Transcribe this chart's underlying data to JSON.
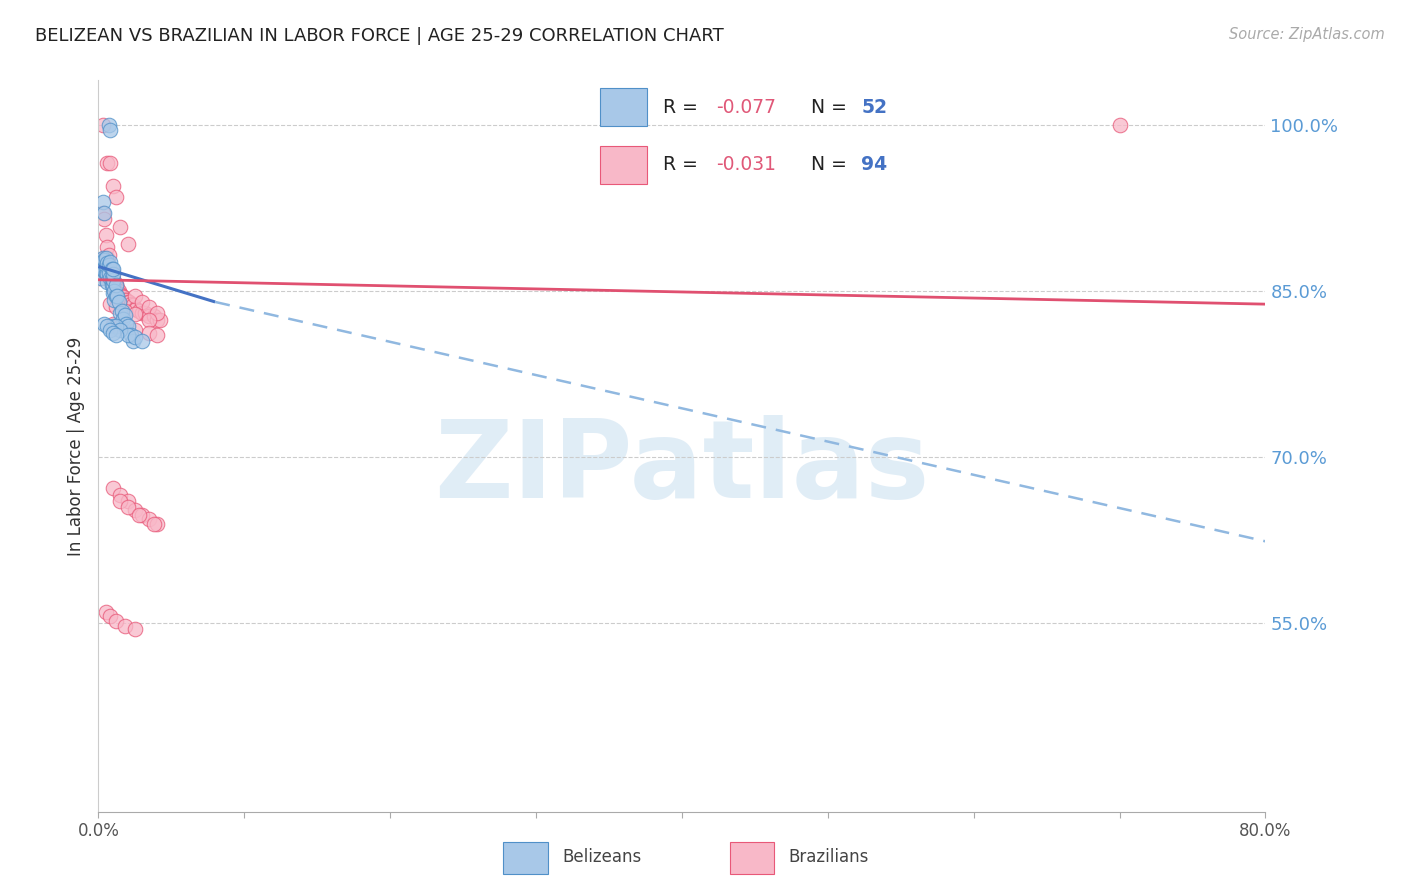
{
  "title": "BELIZEAN VS BRAZILIAN IN LABOR FORCE | AGE 25-29 CORRELATION CHART",
  "source": "Source: ZipAtlas.com",
  "ylabel": "In Labor Force | Age 25-29",
  "xlim": [
    0.0,
    0.8
  ],
  "ylim": [
    0.38,
    1.04
  ],
  "xtick_vals": [
    0.0,
    0.1,
    0.2,
    0.3,
    0.4,
    0.5,
    0.6,
    0.7,
    0.8
  ],
  "xticklabels": [
    "0.0%",
    "",
    "",
    "",
    "",
    "",
    "",
    "",
    "80.0%"
  ],
  "yticks_right": [
    1.0,
    0.85,
    0.7,
    0.55
  ],
  "ytick_right_labels": [
    "100.0%",
    "85.0%",
    "70.0%",
    "55.0%"
  ],
  "blue_scatter_color": "#a8c8e8",
  "blue_edge_color": "#5090c8",
  "pink_scatter_color": "#f8b8c8",
  "pink_edge_color": "#e85878",
  "blue_line_color": "#4472c4",
  "pink_line_color": "#e05070",
  "blue_dashed_color": "#90b8e0",
  "legend_r_blue": "-0.077",
  "legend_n_blue": "52",
  "legend_r_pink": "-0.031",
  "legend_n_pink": "94",
  "watermark": "ZIPatlas",
  "watermark_color": "#c8dff0",
  "blue_line_x0": 0.0,
  "blue_line_y0": 0.872,
  "blue_line_x1": 0.08,
  "blue_line_y1": 0.84,
  "blue_line_xend": 0.8,
  "blue_line_yend": 0.624,
  "pink_line_x0": 0.0,
  "pink_line_y0": 0.86,
  "pink_line_x1": 0.8,
  "pink_line_y1": 0.838,
  "blue_x": [
    0.002,
    0.003,
    0.003,
    0.004,
    0.004,
    0.005,
    0.005,
    0.005,
    0.006,
    0.006,
    0.006,
    0.007,
    0.007,
    0.008,
    0.008,
    0.009,
    0.009,
    0.009,
    0.01,
    0.01,
    0.01,
    0.01,
    0.01,
    0.011,
    0.011,
    0.012,
    0.012,
    0.013,
    0.014,
    0.015,
    0.016,
    0.017,
    0.018,
    0.019,
    0.02,
    0.022,
    0.024,
    0.003,
    0.004,
    0.007,
    0.008,
    0.01,
    0.012,
    0.015,
    0.02,
    0.025,
    0.03,
    0.004,
    0.006,
    0.008,
    0.01,
    0.012
  ],
  "blue_y": [
    0.862,
    0.87,
    0.88,
    0.868,
    0.878,
    0.866,
    0.872,
    0.88,
    0.865,
    0.875,
    0.858,
    0.866,
    0.873,
    0.862,
    0.876,
    0.855,
    0.862,
    0.87,
    0.848,
    0.855,
    0.86,
    0.865,
    0.87,
    0.842,
    0.85,
    0.845,
    0.855,
    0.845,
    0.84,
    0.83,
    0.832,
    0.825,
    0.828,
    0.82,
    0.818,
    0.81,
    0.805,
    0.93,
    0.92,
    1.0,
    0.995,
    0.818,
    0.818,
    0.815,
    0.81,
    0.808,
    0.805,
    0.82,
    0.818,
    0.815,
    0.812,
    0.81
  ],
  "pink_x": [
    0.001,
    0.002,
    0.002,
    0.003,
    0.003,
    0.004,
    0.004,
    0.005,
    0.005,
    0.005,
    0.006,
    0.006,
    0.006,
    0.007,
    0.007,
    0.008,
    0.008,
    0.009,
    0.009,
    0.01,
    0.01,
    0.01,
    0.011,
    0.011,
    0.012,
    0.012,
    0.013,
    0.013,
    0.014,
    0.015,
    0.016,
    0.017,
    0.018,
    0.019,
    0.02,
    0.021,
    0.022,
    0.024,
    0.025,
    0.026,
    0.028,
    0.03,
    0.032,
    0.035,
    0.038,
    0.04,
    0.042,
    0.003,
    0.004,
    0.005,
    0.006,
    0.007,
    0.003,
    0.006,
    0.008,
    0.01,
    0.012,
    0.015,
    0.02,
    0.025,
    0.03,
    0.035,
    0.04,
    0.01,
    0.015,
    0.02,
    0.025,
    0.03,
    0.035,
    0.04,
    0.008,
    0.012,
    0.018,
    0.025,
    0.035,
    0.7,
    0.005,
    0.008,
    0.012,
    0.018,
    0.025,
    0.01,
    0.015,
    0.025,
    0.035,
    0.04,
    0.015,
    0.02,
    0.028,
    0.038
  ],
  "pink_y": [
    0.862,
    0.87,
    0.875,
    0.866,
    0.875,
    0.87,
    0.88,
    0.87,
    0.876,
    0.865,
    0.871,
    0.876,
    0.88,
    0.866,
    0.871,
    0.862,
    0.866,
    0.856,
    0.86,
    0.856,
    0.861,
    0.866,
    0.852,
    0.856,
    0.852,
    0.856,
    0.85,
    0.853,
    0.85,
    0.847,
    0.845,
    0.844,
    0.842,
    0.842,
    0.84,
    0.84,
    0.838,
    0.837,
    0.834,
    0.834,
    0.832,
    0.83,
    0.83,
    0.827,
    0.827,
    0.824,
    0.824,
    0.92,
    0.915,
    0.9,
    0.89,
    0.882,
    1.0,
    0.965,
    0.965,
    0.945,
    0.935,
    0.908,
    0.892,
    0.845,
    0.84,
    0.835,
    0.83,
    0.672,
    0.666,
    0.66,
    0.652,
    0.648,
    0.644,
    0.64,
    0.838,
    0.835,
    0.832,
    0.829,
    0.824,
    1.0,
    0.56,
    0.557,
    0.552,
    0.548,
    0.545,
    0.82,
    0.818,
    0.815,
    0.812,
    0.81,
    0.66,
    0.655,
    0.648,
    0.64
  ]
}
